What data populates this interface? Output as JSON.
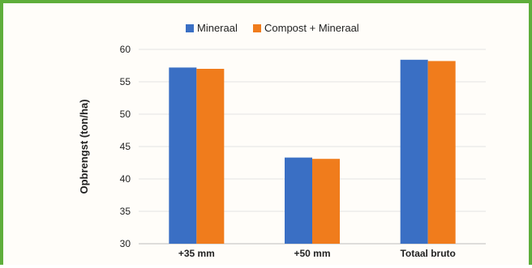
{
  "chart_data": {
    "type": "bar",
    "title": "",
    "xlabel": "",
    "ylabel": "Opbrengst (ton/ha)",
    "categories": [
      "+35 mm",
      "+50 mm",
      "Totaal bruto"
    ],
    "series": [
      {
        "name": "Mineraal",
        "color": "#3a6fc4",
        "values": [
          57.2,
          43.3,
          58.4
        ]
      },
      {
        "name": "Compost + Mineraal",
        "color": "#f07c1c",
        "values": [
          57.0,
          43.1,
          58.2
        ]
      }
    ],
    "ylim": [
      30,
      60
    ],
    "yticks": [
      30,
      35,
      40,
      45,
      50,
      55,
      60
    ],
    "grid": true,
    "legend_position": "top"
  },
  "colors": {
    "frame_border": "#5fae3b",
    "gridline": "#e3e3e3"
  }
}
